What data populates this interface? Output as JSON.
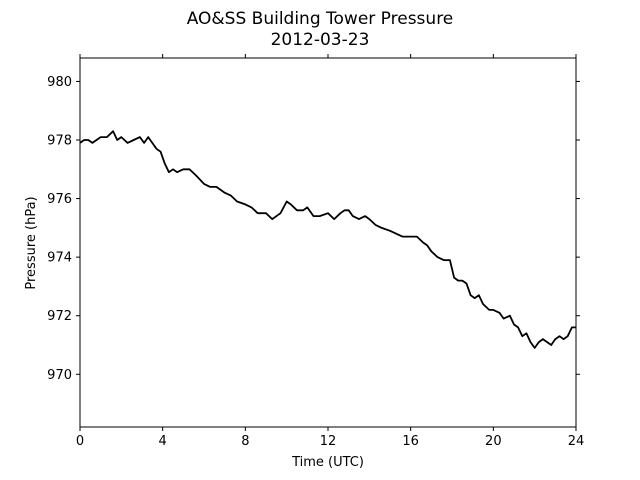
{
  "chart_data": {
    "type": "line",
    "title": "AO&SS Building Tower Pressure",
    "subtitle": "2012-03-23",
    "xlabel": "Time (UTC)",
    "ylabel": "Pressure (hPa)",
    "xlim": [
      0,
      24
    ],
    "ylim": [
      968.2,
      980.8
    ],
    "xticks": [
      0,
      4,
      8,
      12,
      16,
      20,
      24
    ],
    "yticks": [
      970,
      972,
      974,
      976,
      978,
      980
    ],
    "grid": false,
    "series": [
      {
        "color": "#000000",
        "x": [
          0.0,
          0.2,
          0.4,
          0.6,
          0.8,
          1.0,
          1.3,
          1.6,
          1.8,
          2.0,
          2.3,
          2.6,
          2.9,
          3.1,
          3.3,
          3.5,
          3.7,
          3.9,
          4.1,
          4.3,
          4.5,
          4.7,
          5.0,
          5.3,
          5.6,
          6.0,
          6.3,
          6.6,
          7.0,
          7.3,
          7.6,
          8.0,
          8.3,
          8.6,
          9.0,
          9.3,
          9.7,
          10.0,
          10.2,
          10.5,
          10.8,
          11.0,
          11.3,
          11.6,
          12.0,
          12.3,
          12.6,
          12.8,
          13.0,
          13.2,
          13.5,
          13.8,
          14.0,
          14.3,
          14.6,
          15.0,
          15.3,
          15.6,
          16.0,
          16.3,
          16.6,
          16.8,
          17.0,
          17.3,
          17.6,
          17.9,
          18.1,
          18.3,
          18.5,
          18.7,
          18.9,
          19.1,
          19.3,
          19.5,
          19.8,
          20.0,
          20.3,
          20.5,
          20.8,
          21.0,
          21.2,
          21.4,
          21.6,
          21.8,
          22.0,
          22.2,
          22.4,
          22.6,
          22.8,
          23.0,
          23.2,
          23.4,
          23.6,
          23.8,
          24.0
        ],
        "y": [
          977.9,
          978.0,
          978.0,
          977.9,
          978.0,
          978.1,
          978.1,
          978.3,
          978.0,
          978.1,
          977.9,
          978.0,
          978.1,
          977.9,
          978.1,
          977.9,
          977.7,
          977.6,
          977.2,
          976.9,
          977.0,
          976.9,
          977.0,
          977.0,
          976.8,
          976.5,
          976.4,
          976.4,
          976.2,
          976.1,
          975.9,
          975.8,
          975.7,
          975.5,
          975.5,
          975.3,
          975.5,
          975.9,
          975.8,
          975.6,
          975.6,
          975.7,
          975.4,
          975.4,
          975.5,
          975.3,
          975.5,
          975.6,
          975.6,
          975.4,
          975.3,
          975.4,
          975.3,
          975.1,
          975.0,
          974.9,
          974.8,
          974.7,
          974.7,
          974.7,
          974.5,
          974.4,
          974.2,
          974.0,
          973.9,
          973.9,
          973.3,
          973.2,
          973.2,
          973.1,
          972.7,
          972.6,
          972.7,
          972.4,
          972.2,
          972.2,
          972.1,
          971.9,
          972.0,
          971.7,
          971.6,
          971.3,
          971.4,
          971.1,
          970.9,
          971.1,
          971.2,
          971.1,
          971.0,
          971.2,
          971.3,
          971.2,
          971.3,
          971.6,
          971.6
        ]
      }
    ]
  }
}
